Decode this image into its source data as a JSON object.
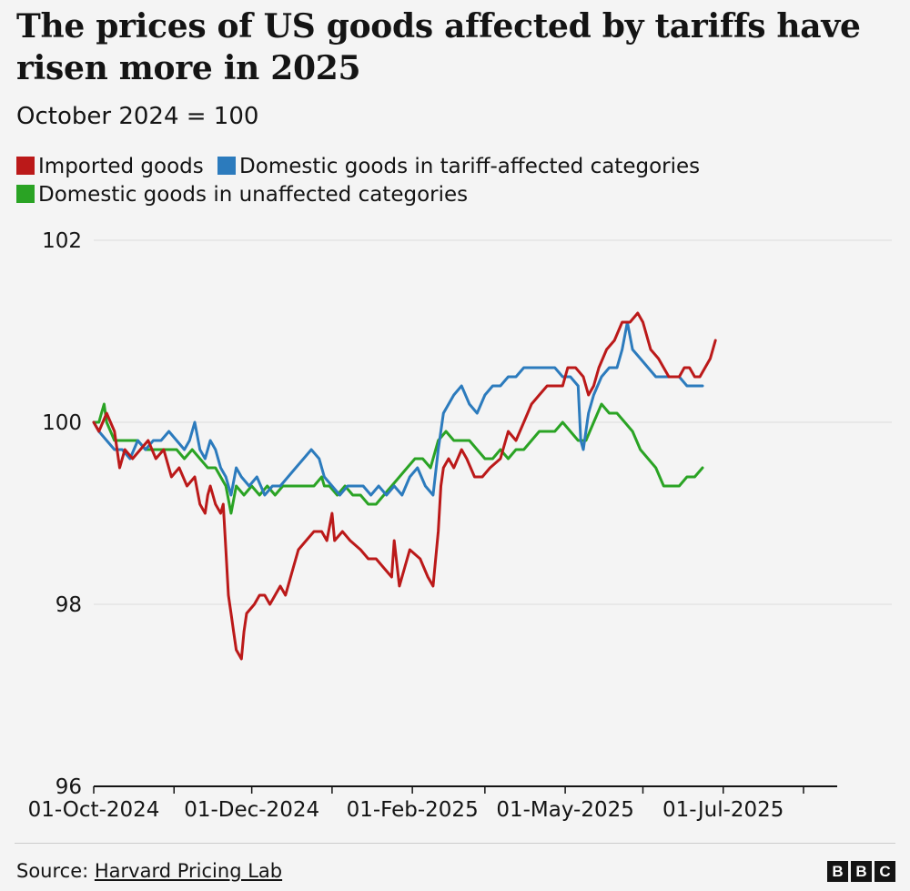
{
  "header": {
    "title": "The prices of US goods affected by tariffs have risen more in 2025",
    "subtitle": "October 2024 = 100"
  },
  "legend": {
    "items": [
      {
        "label": "Imported goods",
        "color": "#bb1919"
      },
      {
        "label": "Domestic goods in tariff-affected categories",
        "color": "#2c7bbd"
      },
      {
        "label": "Domestic goods in unaffected categories",
        "color": "#2aa324"
      }
    ]
  },
  "footer": {
    "source_prefix": "Source:",
    "source_name": "Harvard Pricing Lab",
    "logo_letters": [
      "B",
      "B",
      "C"
    ]
  },
  "chart_data": {
    "type": "line",
    "title": "The prices of US goods affected by tariffs have risen more in 2025",
    "subtitle": "October 2024 = 100",
    "xlabel": "",
    "ylabel": "",
    "x_unit": "days since 01-Oct-2024",
    "xlim": [
      0,
      287
    ],
    "ylim": [
      96,
      102
    ],
    "yticks": [
      96,
      98,
      100,
      102
    ],
    "grid": "horizontal",
    "legend_position": "top",
    "xticks": [
      {
        "day": 0,
        "label": "01-Oct-2024"
      },
      {
        "day": 31,
        "label": ""
      },
      {
        "day": 61,
        "label": "01-Dec-2024"
      },
      {
        "day": 92,
        "label": ""
      },
      {
        "day": 123,
        "label": "01-Feb-2025"
      },
      {
        "day": 151,
        "label": ""
      },
      {
        "day": 182,
        "label": "01-May-2025"
      },
      {
        "day": 212,
        "label": ""
      },
      {
        "day": 243,
        "label": "01-Jul-2025"
      },
      {
        "day": 274,
        "label": ""
      }
    ],
    "series": [
      {
        "name": "Imported goods",
        "color": "#bb1919",
        "points": [
          [
            0,
            100.0
          ],
          [
            2,
            99.9
          ],
          [
            5,
            100.1
          ],
          [
            8,
            99.9
          ],
          [
            10,
            99.5
          ],
          [
            12,
            99.7
          ],
          [
            15,
            99.6
          ],
          [
            18,
            99.7
          ],
          [
            21,
            99.8
          ],
          [
            24,
            99.6
          ],
          [
            27,
            99.7
          ],
          [
            30,
            99.4
          ],
          [
            33,
            99.5
          ],
          [
            36,
            99.3
          ],
          [
            39,
            99.4
          ],
          [
            41,
            99.1
          ],
          [
            43,
            99.0
          ],
          [
            44,
            99.2
          ],
          [
            45,
            99.3
          ],
          [
            47,
            99.1
          ],
          [
            49,
            99.0
          ],
          [
            50,
            99.1
          ],
          [
            51,
            98.6
          ],
          [
            52,
            98.1
          ],
          [
            53,
            97.9
          ],
          [
            54,
            97.7
          ],
          [
            55,
            97.5
          ],
          [
            57,
            97.4
          ],
          [
            58,
            97.7
          ],
          [
            59,
            97.9
          ],
          [
            62,
            98.0
          ],
          [
            64,
            98.1
          ],
          [
            66,
            98.1
          ],
          [
            68,
            98.0
          ],
          [
            70,
            98.1
          ],
          [
            72,
            98.2
          ],
          [
            74,
            98.1
          ],
          [
            77,
            98.4
          ],
          [
            79,
            98.6
          ],
          [
            82,
            98.7
          ],
          [
            85,
            98.8
          ],
          [
            88,
            98.8
          ],
          [
            90,
            98.7
          ],
          [
            92,
            99.0
          ],
          [
            93,
            98.7
          ],
          [
            96,
            98.8
          ],
          [
            99,
            98.7
          ],
          [
            103,
            98.6
          ],
          [
            106,
            98.5
          ],
          [
            109,
            98.5
          ],
          [
            112,
            98.4
          ],
          [
            115,
            98.3
          ],
          [
            116,
            98.7
          ],
          [
            118,
            98.2
          ],
          [
            120,
            98.4
          ],
          [
            122,
            98.6
          ],
          [
            126,
            98.5
          ],
          [
            129,
            98.3
          ],
          [
            131,
            98.2
          ],
          [
            133,
            98.8
          ],
          [
            134,
            99.3
          ],
          [
            135,
            99.5
          ],
          [
            137,
            99.6
          ],
          [
            139,
            99.5
          ],
          [
            142,
            99.7
          ],
          [
            144,
            99.6
          ],
          [
            147,
            99.4
          ],
          [
            150,
            99.4
          ],
          [
            153,
            99.5
          ],
          [
            157,
            99.6
          ],
          [
            160,
            99.9
          ],
          [
            163,
            99.8
          ],
          [
            166,
            100.0
          ],
          [
            169,
            100.2
          ],
          [
            172,
            100.3
          ],
          [
            175,
            100.4
          ],
          [
            178,
            100.4
          ],
          [
            181,
            100.4
          ],
          [
            183,
            100.6
          ],
          [
            186,
            100.6
          ],
          [
            189,
            100.5
          ],
          [
            191,
            100.3
          ],
          [
            193,
            100.4
          ],
          [
            195,
            100.6
          ],
          [
            198,
            100.8
          ],
          [
            201,
            100.9
          ],
          [
            204,
            101.1
          ],
          [
            207,
            101.1
          ],
          [
            210,
            101.2
          ],
          [
            212,
            101.1
          ],
          [
            215,
            100.8
          ],
          [
            218,
            100.7
          ],
          [
            220,
            100.6
          ],
          [
            222,
            100.5
          ],
          [
            224,
            100.5
          ],
          [
            226,
            100.5
          ],
          [
            228,
            100.6
          ],
          [
            230,
            100.6
          ],
          [
            232,
            100.5
          ],
          [
            234,
            100.5
          ],
          [
            236,
            100.6
          ],
          [
            238,
            100.7
          ],
          [
            240,
            100.9
          ]
        ]
      },
      {
        "name": "Domestic goods in tariff-affected categories",
        "color": "#2c7bbd",
        "points": [
          [
            0,
            100.0
          ],
          [
            2,
            99.9
          ],
          [
            5,
            99.8
          ],
          [
            8,
            99.7
          ],
          [
            11,
            99.7
          ],
          [
            14,
            99.6
          ],
          [
            17,
            99.8
          ],
          [
            20,
            99.7
          ],
          [
            23,
            99.8
          ],
          [
            26,
            99.8
          ],
          [
            29,
            99.9
          ],
          [
            32,
            99.8
          ],
          [
            35,
            99.7
          ],
          [
            37,
            99.8
          ],
          [
            39,
            100.0
          ],
          [
            41,
            99.7
          ],
          [
            43,
            99.6
          ],
          [
            45,
            99.8
          ],
          [
            47,
            99.7
          ],
          [
            49,
            99.5
          ],
          [
            51,
            99.4
          ],
          [
            53,
            99.2
          ],
          [
            55,
            99.5
          ],
          [
            57,
            99.4
          ],
          [
            60,
            99.3
          ],
          [
            63,
            99.4
          ],
          [
            66,
            99.2
          ],
          [
            69,
            99.3
          ],
          [
            72,
            99.3
          ],
          [
            75,
            99.4
          ],
          [
            78,
            99.5
          ],
          [
            81,
            99.6
          ],
          [
            84,
            99.7
          ],
          [
            87,
            99.6
          ],
          [
            89,
            99.4
          ],
          [
            92,
            99.3
          ],
          [
            95,
            99.2
          ],
          [
            98,
            99.3
          ],
          [
            101,
            99.3
          ],
          [
            104,
            99.3
          ],
          [
            107,
            99.2
          ],
          [
            110,
            99.3
          ],
          [
            113,
            99.2
          ],
          [
            116,
            99.3
          ],
          [
            119,
            99.2
          ],
          [
            122,
            99.4
          ],
          [
            125,
            99.5
          ],
          [
            128,
            99.3
          ],
          [
            131,
            99.2
          ],
          [
            133,
            99.7
          ],
          [
            135,
            100.1
          ],
          [
            137,
            100.2
          ],
          [
            139,
            100.3
          ],
          [
            142,
            100.4
          ],
          [
            145,
            100.2
          ],
          [
            148,
            100.1
          ],
          [
            151,
            100.3
          ],
          [
            154,
            100.4
          ],
          [
            157,
            100.4
          ],
          [
            160,
            100.5
          ],
          [
            163,
            100.5
          ],
          [
            166,
            100.6
          ],
          [
            169,
            100.6
          ],
          [
            172,
            100.6
          ],
          [
            175,
            100.6
          ],
          [
            178,
            100.6
          ],
          [
            181,
            100.5
          ],
          [
            184,
            100.5
          ],
          [
            187,
            100.4
          ],
          [
            188,
            99.8
          ],
          [
            189,
            99.7
          ],
          [
            191,
            100.1
          ],
          [
            193,
            100.3
          ],
          [
            196,
            100.5
          ],
          [
            199,
            100.6
          ],
          [
            202,
            100.6
          ],
          [
            204,
            100.8
          ],
          [
            206,
            101.1
          ],
          [
            208,
            100.8
          ],
          [
            211,
            100.7
          ],
          [
            214,
            100.6
          ],
          [
            217,
            100.5
          ],
          [
            220,
            100.5
          ],
          [
            223,
            100.5
          ],
          [
            226,
            100.5
          ],
          [
            229,
            100.4
          ],
          [
            232,
            100.4
          ],
          [
            235,
            100.4
          ]
        ]
      },
      {
        "name": "Domestic goods in unaffected categories",
        "color": "#2aa324",
        "points": [
          [
            0,
            100.0
          ],
          [
            2,
            100.0
          ],
          [
            3,
            100.1
          ],
          [
            4,
            100.2
          ],
          [
            5,
            100.0
          ],
          [
            8,
            99.8
          ],
          [
            11,
            99.8
          ],
          [
            14,
            99.8
          ],
          [
            17,
            99.8
          ],
          [
            20,
            99.7
          ],
          [
            23,
            99.7
          ],
          [
            26,
            99.7
          ],
          [
            29,
            99.7
          ],
          [
            32,
            99.7
          ],
          [
            35,
            99.6
          ],
          [
            38,
            99.7
          ],
          [
            41,
            99.6
          ],
          [
            44,
            99.5
          ],
          [
            47,
            99.5
          ],
          [
            49,
            99.4
          ],
          [
            51,
            99.3
          ],
          [
            53,
            99.0
          ],
          [
            55,
            99.3
          ],
          [
            58,
            99.2
          ],
          [
            61,
            99.3
          ],
          [
            64,
            99.2
          ],
          [
            67,
            99.3
          ],
          [
            70,
            99.2
          ],
          [
            73,
            99.3
          ],
          [
            76,
            99.3
          ],
          [
            79,
            99.3
          ],
          [
            82,
            99.3
          ],
          [
            85,
            99.3
          ],
          [
            88,
            99.4
          ],
          [
            89,
            99.3
          ],
          [
            91,
            99.3
          ],
          [
            94,
            99.2
          ],
          [
            97,
            99.3
          ],
          [
            100,
            99.2
          ],
          [
            103,
            99.2
          ],
          [
            106,
            99.1
          ],
          [
            109,
            99.1
          ],
          [
            112,
            99.2
          ],
          [
            115,
            99.3
          ],
          [
            118,
            99.4
          ],
          [
            121,
            99.5
          ],
          [
            124,
            99.6
          ],
          [
            127,
            99.6
          ],
          [
            130,
            99.5
          ],
          [
            133,
            99.8
          ],
          [
            136,
            99.9
          ],
          [
            139,
            99.8
          ],
          [
            142,
            99.8
          ],
          [
            145,
            99.8
          ],
          [
            148,
            99.7
          ],
          [
            151,
            99.6
          ],
          [
            154,
            99.6
          ],
          [
            157,
            99.7
          ],
          [
            160,
            99.6
          ],
          [
            163,
            99.7
          ],
          [
            166,
            99.7
          ],
          [
            169,
            99.8
          ],
          [
            172,
            99.9
          ],
          [
            175,
            99.9
          ],
          [
            178,
            99.9
          ],
          [
            181,
            100.0
          ],
          [
            184,
            99.9
          ],
          [
            187,
            99.8
          ],
          [
            190,
            99.8
          ],
          [
            193,
            100.0
          ],
          [
            196,
            100.2
          ],
          [
            199,
            100.1
          ],
          [
            202,
            100.1
          ],
          [
            205,
            100.0
          ],
          [
            208,
            99.9
          ],
          [
            211,
            99.7
          ],
          [
            214,
            99.6
          ],
          [
            217,
            99.5
          ],
          [
            220,
            99.3
          ],
          [
            223,
            99.3
          ],
          [
            226,
            99.3
          ],
          [
            229,
            99.4
          ],
          [
            232,
            99.4
          ],
          [
            235,
            99.5
          ]
        ]
      }
    ]
  }
}
